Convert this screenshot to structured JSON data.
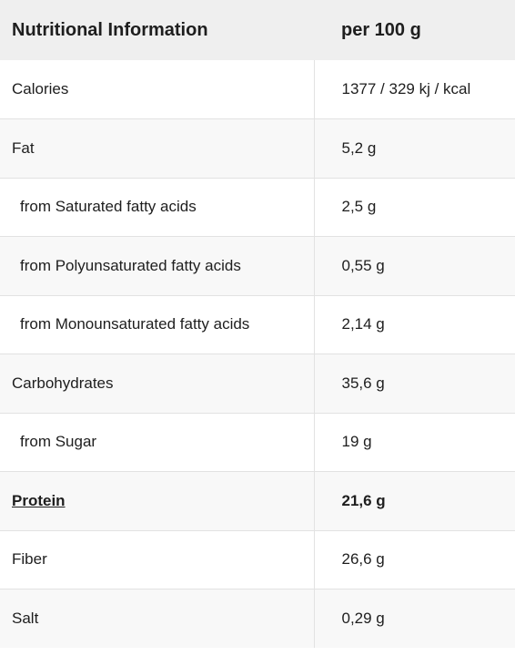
{
  "table": {
    "headers": [
      "Nutritional Information",
      "per 100 g"
    ],
    "rows": [
      {
        "label": "Calories",
        "value": "1377 / 329 kj / kcal"
      },
      {
        "label": "Fat",
        "value": "5,2 g"
      },
      {
        "label": "from Saturated fatty acids",
        "value": "2,5 g"
      },
      {
        "label": "from Polyunsaturated fatty acids",
        "value": "0,55 g"
      },
      {
        "label": "from Monounsaturated fatty acids",
        "value": "2,14 g"
      },
      {
        "label": "Carbohydrates",
        "value": "35,6 g"
      },
      {
        "label": "from Sugar",
        "value": "19 g"
      },
      {
        "label": "Protein",
        "value": "21,6 g"
      },
      {
        "label": "Fiber",
        "value": "26,6 g"
      },
      {
        "label": "Salt",
        "value": "0,29 g"
      }
    ]
  }
}
